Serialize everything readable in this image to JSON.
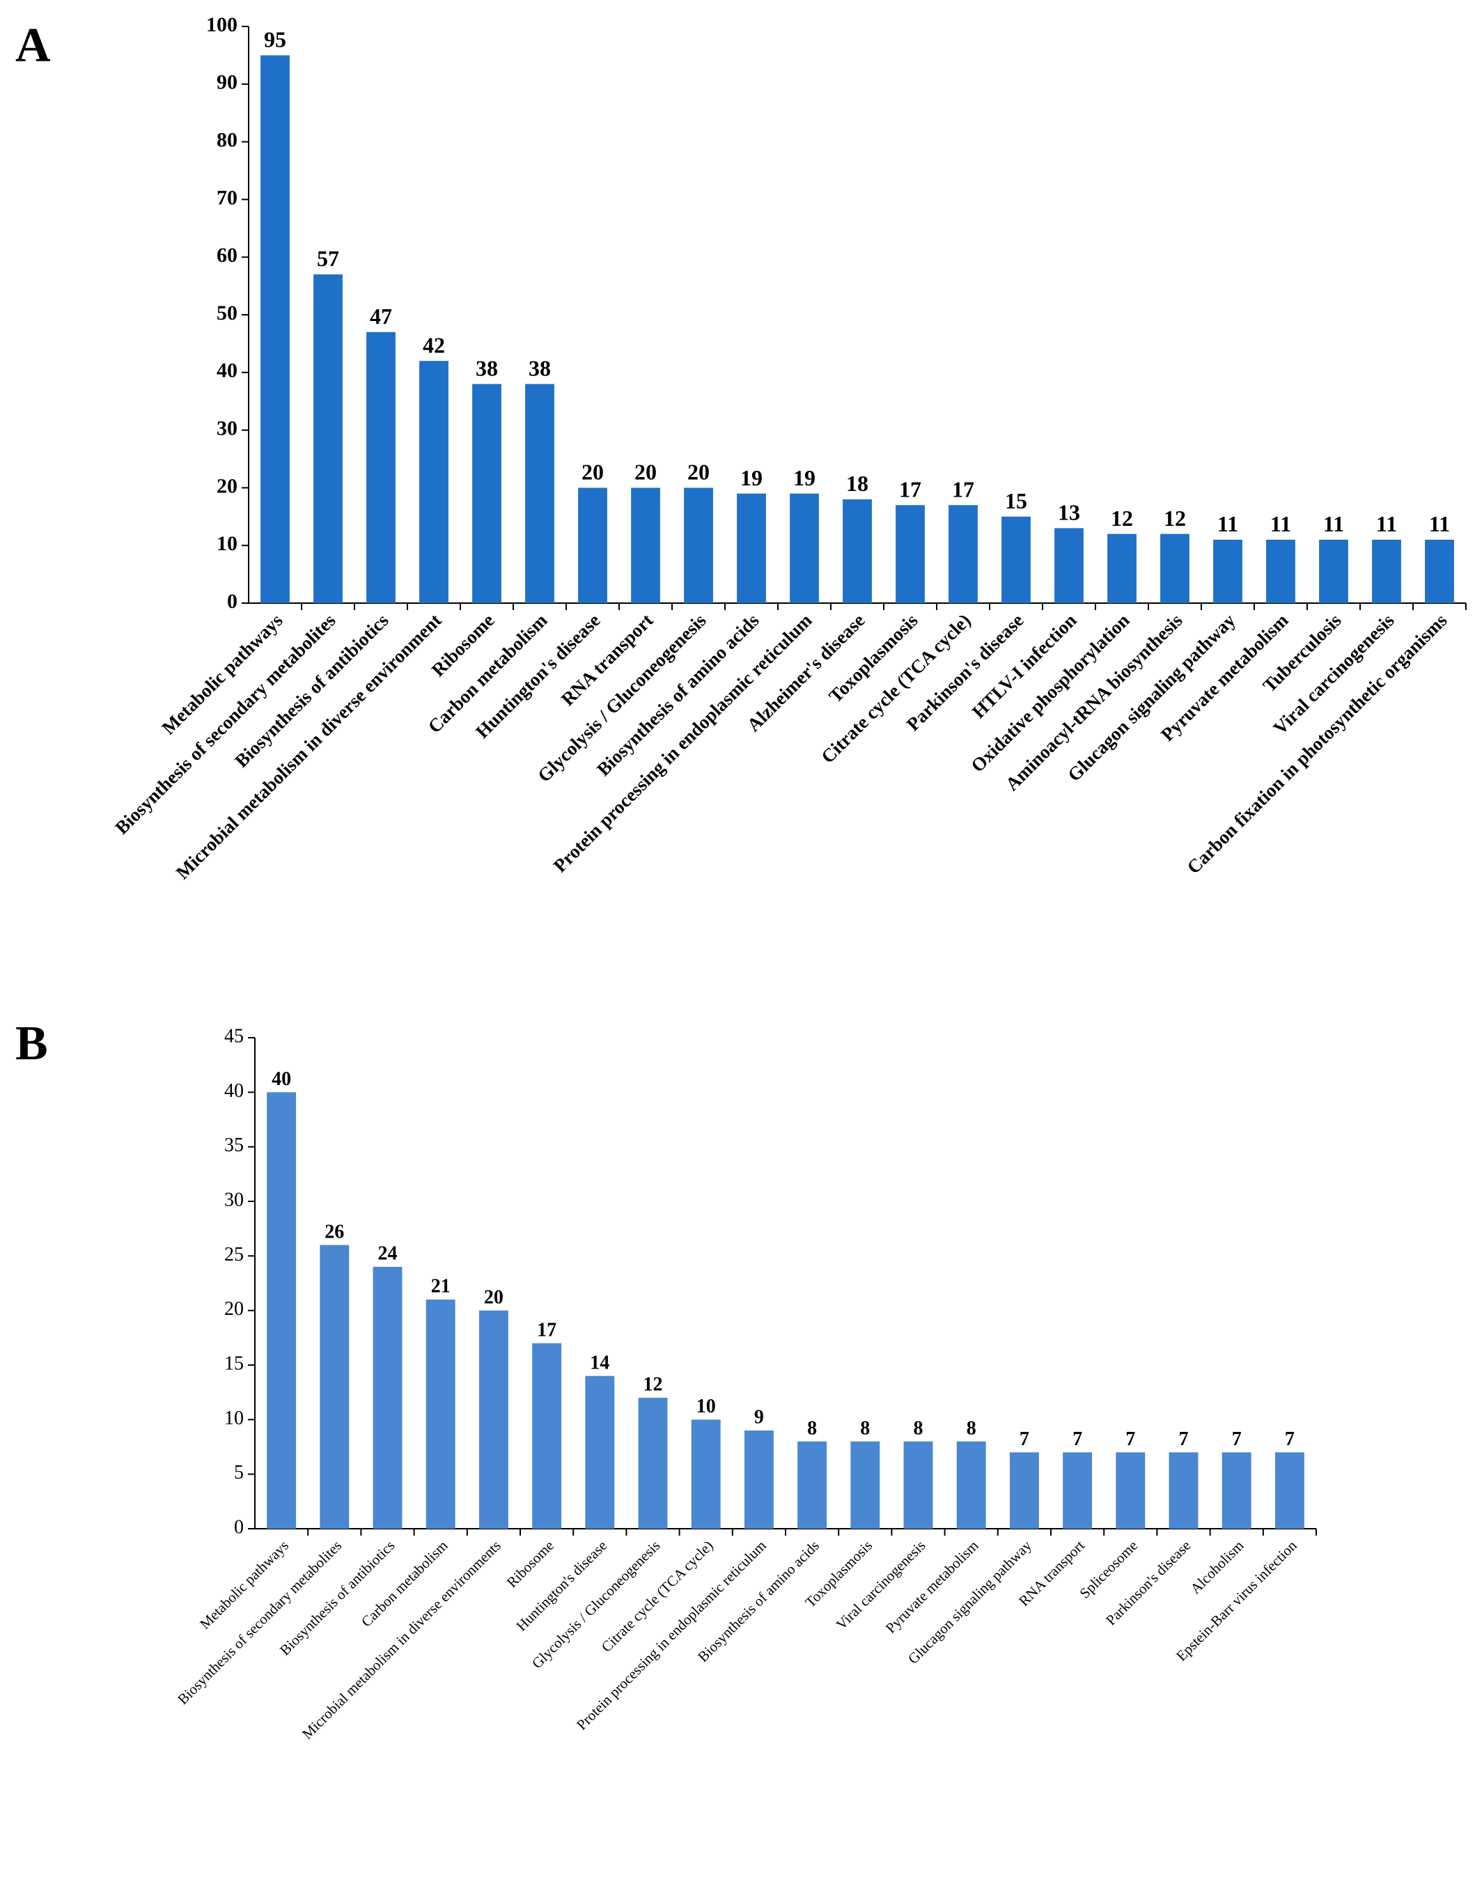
{
  "chart_data": [
    {
      "type": "bar",
      "label": "A",
      "categories": [
        "Metabolic pathways",
        "Biosynthesis of secondary metabolites",
        "Biosynthesis of antibiotics",
        "Microbial metabolism in diverse environment",
        "Ribosome",
        "Carbon metabolism",
        "Huntington's disease",
        "RNA transport",
        "Glycolysis / Gluconeogenesis",
        "Biosynthesis of amino acids",
        "Protein processing in endoplasmic reticulum",
        "Alzheimer's disease",
        "Toxoplasmosis",
        "Citrate cycle (TCA cycle)",
        "Parkinson's disease",
        "HTLV-I infection",
        "Oxidative phosphorylation",
        "Aminoacyl-tRNA biosynthesis",
        "Glucagon signaling pathway",
        "Pyruvate metabolism",
        "Tuberculosis",
        "Viral carcinogenesis",
        "Carbon fixation in photosynthetic organisms"
      ],
      "values": [
        95,
        57,
        47,
        42,
        38,
        38,
        20,
        20,
        20,
        19,
        19,
        18,
        17,
        17,
        15,
        13,
        12,
        12,
        11,
        11,
        11,
        11,
        11
      ],
      "color": "#1f70c8",
      "ylim": [
        0,
        100
      ],
      "yticks": [
        0,
        10,
        20,
        30,
        40,
        50,
        60,
        70,
        80,
        90,
        100
      ]
    },
    {
      "type": "bar",
      "label": "B",
      "categories": [
        "Metabolic pathways",
        "Biosynthesis of secondary metabolites",
        "Biosynthesis of antibiotics",
        "Carbon metabolism",
        "Microbial metabolism in diverse environments",
        "Ribosome",
        "Huntington's disease",
        "Glycolysis / Gluconeogenesis",
        "Citrate cycle (TCA cycle)",
        "Protein processing in endoplasmic reticulum",
        "Biosynthesis of amino acids",
        "Toxoplasmosis",
        "Viral carcinogenesis",
        "Pyruvate metabolism",
        "Glucagon signaling pathway",
        "RNA transport",
        "Spliceosome",
        "Parkinson's disease",
        "Alcoholism",
        "Epstein-Barr virus infection"
      ],
      "values": [
        40,
        26,
        24,
        21,
        20,
        17,
        14,
        12,
        10,
        9,
        8,
        8,
        8,
        8,
        7,
        7,
        7,
        7,
        7,
        7
      ],
      "color": "#4a87d2",
      "ylim": [
        0,
        45
      ],
      "yticks": [
        0,
        5,
        10,
        15,
        20,
        25,
        30,
        35,
        40,
        45
      ]
    }
  ]
}
